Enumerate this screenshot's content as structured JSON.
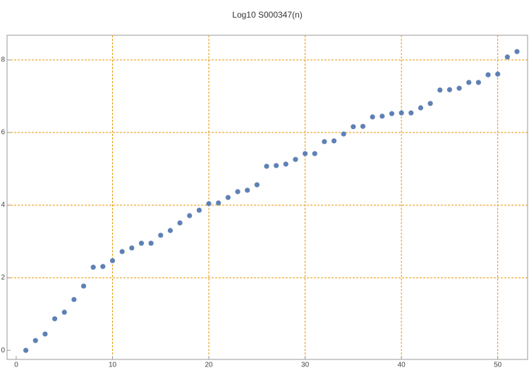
{
  "chart_data": {
    "type": "scatter",
    "title": "Log10 S000347(n)",
    "x": [
      1,
      2,
      3,
      4,
      5,
      6,
      7,
      8,
      9,
      10,
      11,
      12,
      13,
      14,
      15,
      16,
      17,
      18,
      19,
      20,
      21,
      22,
      23,
      24,
      25,
      26,
      27,
      28,
      29,
      30,
      31,
      32,
      33,
      34,
      35,
      36,
      37,
      38,
      39,
      40,
      41,
      42,
      43,
      44,
      45,
      46,
      47,
      48,
      49,
      50,
      51,
      52
    ],
    "series": [
      {
        "color": "#5e81b5",
        "values": [
          0,
          0.27,
          0.45,
          0.87,
          1.05,
          1.4,
          1.77,
          2.29,
          2.31,
          2.47,
          2.72,
          2.82,
          2.95,
          2.95,
          3.17,
          3.3,
          3.51,
          3.71,
          3.86,
          4.04,
          4.06,
          4.21,
          4.37,
          4.41,
          4.56,
          5.07,
          5.09,
          5.13,
          5.26,
          5.42,
          5.42,
          5.75,
          5.77,
          5.96,
          6.16,
          6.17,
          6.43,
          6.45,
          6.52,
          6.54,
          6.54,
          6.68,
          6.8,
          7.17,
          7.18,
          7.22,
          7.38,
          7.38,
          7.59,
          7.61,
          8.08,
          8.23
        ]
      }
    ],
    "xlim": [
      -0.95,
      53.1
    ],
    "ylim": [
      -0.25,
      8.68
    ],
    "xticks": [
      0,
      10,
      20,
      30,
      40,
      50
    ],
    "yticks": [
      0,
      2,
      4,
      6,
      8
    ],
    "xgrid": [
      10,
      20,
      30,
      40,
      50
    ],
    "ygrid": [
      2,
      4,
      6,
      8
    ],
    "grid_color": "#e69500"
  }
}
